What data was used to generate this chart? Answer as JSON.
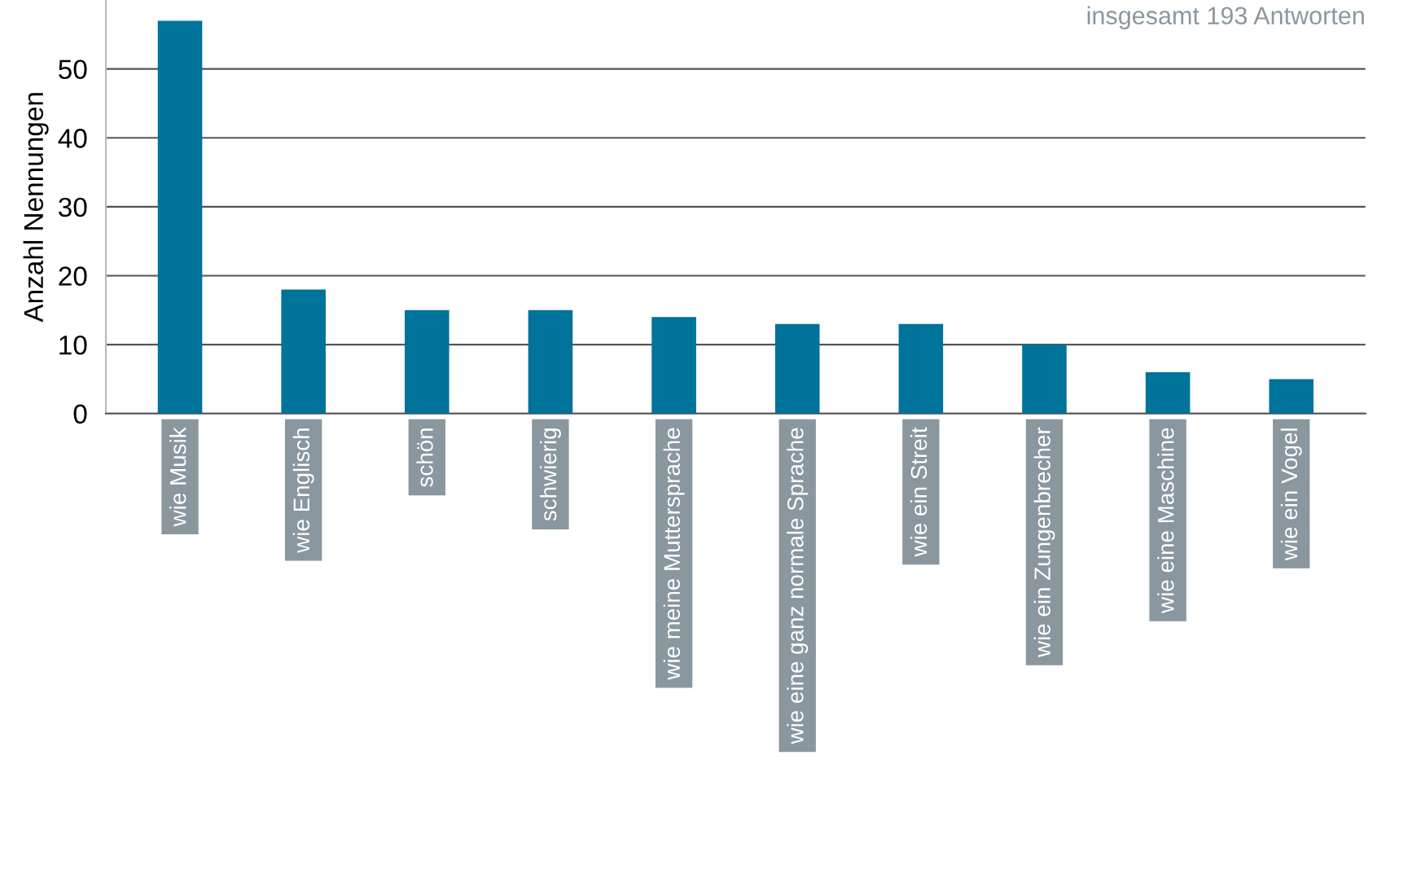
{
  "chart_data": {
    "type": "bar",
    "ylabel": "Anzahl Nennungen",
    "annotations": [
      "insgesamt 193 Antworten"
    ],
    "categories": [
      "wie Musik",
      "wie Englisch",
      "schön",
      "schwierig",
      "wie meine Muttersprache",
      "wie eine ganz normale Sprache",
      "wie ein Streit",
      "wie ein Zungenbrecher",
      "wie eine Maschine",
      "wie ein Vogel"
    ],
    "values": [
      57,
      18,
      15,
      15,
      14,
      13,
      13,
      10,
      6,
      5
    ],
    "color": "#00739a",
    "ylim": [
      0,
      60
    ],
    "yticks": [
      0,
      10,
      20,
      30,
      40,
      50
    ],
    "grid": "y"
  }
}
